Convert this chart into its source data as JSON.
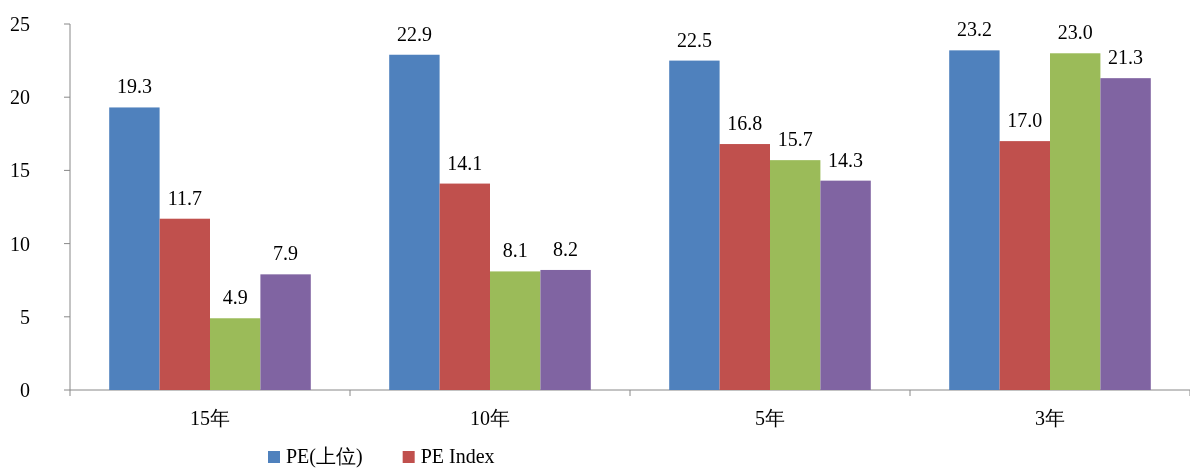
{
  "chart_data": {
    "type": "bar",
    "categories": [
      "15年",
      "10年",
      "5年",
      "3年"
    ],
    "series": [
      {
        "name": "PE(上位)",
        "color": "#4f81bd",
        "values": [
          19.3,
          22.9,
          22.5,
          23.2
        ],
        "value_labels": [
          "19.3",
          "22.9",
          "22.5",
          "23.2"
        ]
      },
      {
        "name": "PE Index",
        "color": "#c0504d",
        "values": [
          11.7,
          14.1,
          16.8,
          17.0
        ],
        "value_labels": [
          "11.7",
          "14.1",
          "16.8",
          "17.0"
        ]
      },
      {
        "color": "#9bbb59",
        "values": [
          4.9,
          8.1,
          15.7,
          23.0
        ],
        "value_labels": [
          "4.9",
          "8.1",
          "15.7",
          "23.0"
        ]
      },
      {
        "color": "#8064a2",
        "values": [
          7.9,
          8.2,
          14.3,
          21.3
        ],
        "value_labels": [
          "7.9",
          "8.2",
          "14.3",
          "21.3"
        ]
      }
    ],
    "ylim": [
      0,
      25
    ],
    "yticks": [
      0,
      5,
      10,
      15,
      20,
      25
    ],
    "legend": "bottom",
    "grid": false
  }
}
